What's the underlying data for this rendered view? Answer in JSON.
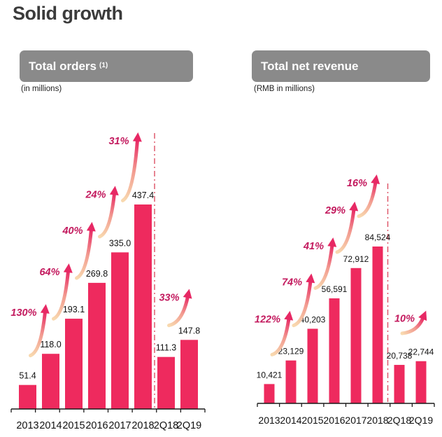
{
  "page": {
    "title": "Solid growth"
  },
  "colors": {
    "bar": "#EE2A5E",
    "percent_text": "#C31A5E",
    "arrow_gradient_start": "#F8D9AF",
    "arrow_gradient_mid": "#F29B90",
    "arrow_gradient_end": "#E72864",
    "divider": "#DD4F63",
    "header_bg": "#8A8A8A",
    "header_text": "#FFFFFF",
    "title_text": "#3B3B3B",
    "axis": "#1A1A1A",
    "value_text": "#111111"
  },
  "charts": [
    {
      "header": "Total orders",
      "header_sup": "(1)",
      "subtitle": "(in millions)"
    },
    {
      "header": "Total net revenue",
      "header_sup": "",
      "subtitle": "(RMB in millions)"
    }
  ],
  "chart_data": [
    {
      "type": "bar",
      "title": "Total orders (1)",
      "unit_note": "(in millions)",
      "categories": [
        "2013",
        "2014",
        "2015",
        "2016",
        "2017",
        "2018",
        "2Q18",
        "2Q19"
      ],
      "values": [
        51.4,
        118.0,
        193.1,
        269.8,
        335.0,
        437.4,
        111.3,
        147.8
      ],
      "value_labels": [
        "51.4",
        "118.0",
        "193.1",
        "269.8",
        "335.0",
        "437.4",
        "111.3",
        "147.8"
      ],
      "growth_arrows": [
        {
          "from": "2013",
          "to": "2014",
          "label": "130%"
        },
        {
          "from": "2014",
          "to": "2015",
          "label": "64%"
        },
        {
          "from": "2015",
          "to": "2016",
          "label": "40%"
        },
        {
          "from": "2016",
          "to": "2017",
          "label": "24%"
        },
        {
          "from": "2017",
          "to": "2018",
          "label": "31%"
        },
        {
          "from": "2Q18",
          "to": "2Q19",
          "label": "33%"
        }
      ],
      "divider_after": "2018",
      "xlabel": "",
      "ylabel": "",
      "ylim": [
        0,
        450
      ],
      "grid": false,
      "legend": false
    },
    {
      "type": "bar",
      "title": "Total net revenue",
      "unit_note": "(RMB in millions)",
      "categories": [
        "2013",
        "2014",
        "2015",
        "2016",
        "2017",
        "2018",
        "2Q18",
        "2Q19"
      ],
      "values": [
        10421,
        23129,
        40203,
        56591,
        72912,
        84524,
        20738,
        22744
      ],
      "value_labels": [
        "10,421",
        "23,129",
        "40,203",
        "56,591",
        "72,912",
        "84,524",
        "20,738",
        "22,744"
      ],
      "growth_arrows": [
        {
          "from": "2013",
          "to": "2014",
          "label": "122%"
        },
        {
          "from": "2014",
          "to": "2015",
          "label": "74%"
        },
        {
          "from": "2015",
          "to": "2016",
          "label": "41%"
        },
        {
          "from": "2016",
          "to": "2017",
          "label": "29%"
        },
        {
          "from": "2017",
          "to": "2018",
          "label": "16%"
        },
        {
          "from": "2Q18",
          "to": "2Q19",
          "label": "10%"
        }
      ],
      "divider_after": "2018",
      "xlabel": "",
      "ylabel": "",
      "ylim": [
        0,
        90000
      ],
      "grid": false,
      "legend": false
    }
  ]
}
